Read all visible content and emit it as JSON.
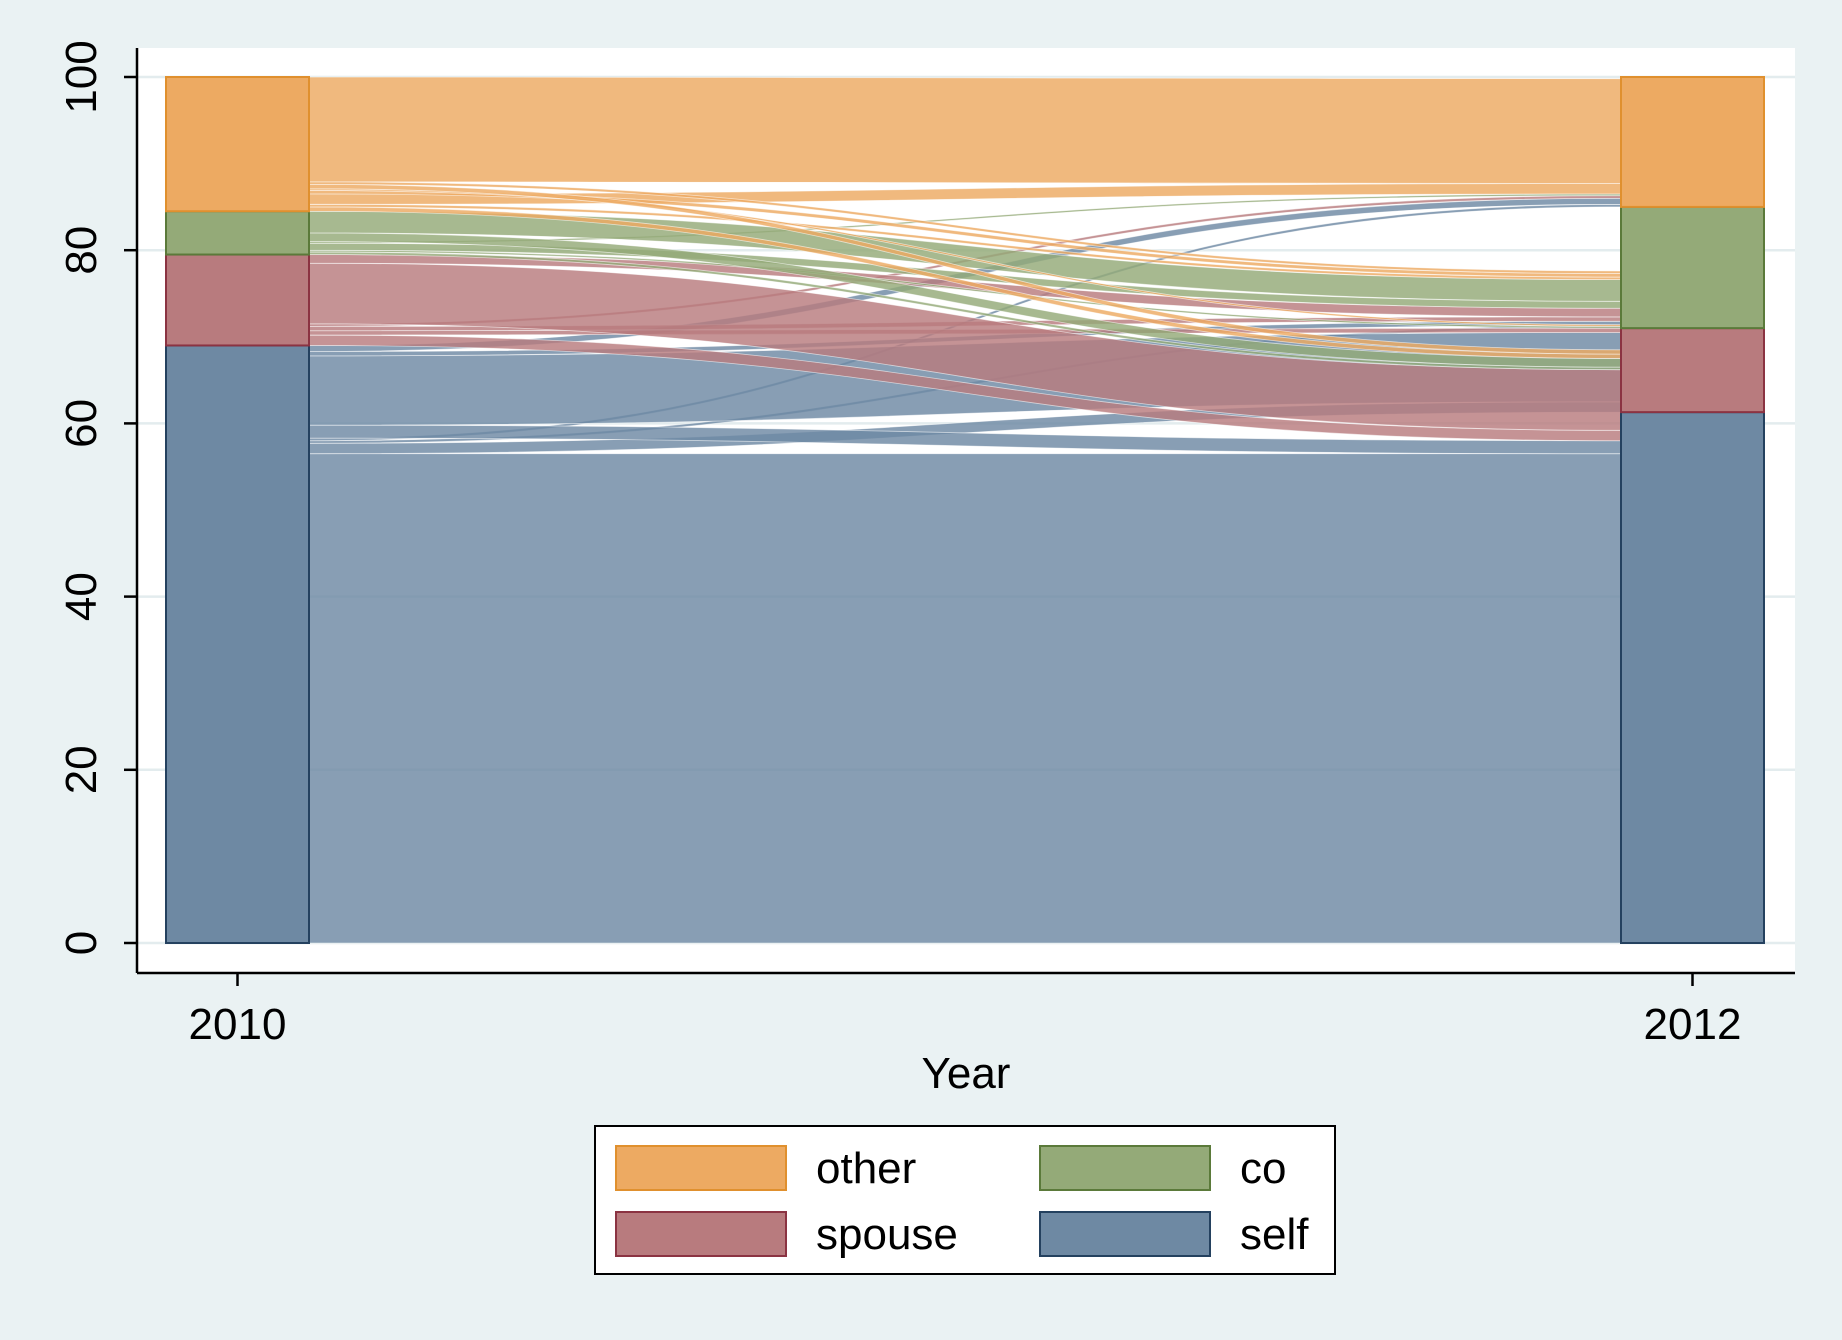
{
  "chart_data": {
    "type": "alluvial",
    "title": "",
    "xlabel": "Year",
    "ylabel": "",
    "categories": [
      "2010",
      "2012"
    ],
    "ylim": [
      0,
      100
    ],
    "y_ticks": [
      0,
      20,
      40,
      60,
      80,
      100
    ],
    "grid": true,
    "legend_position": "bottom",
    "series": [
      {
        "name": "self",
        "values": [
          69.0,
          61.3
        ],
        "color": "#6e89a3",
        "edge": "#24415f"
      },
      {
        "name": "spouse",
        "values": [
          10.5,
          9.7
        ],
        "color": "#b87b7e",
        "edge": "#8b3342"
      },
      {
        "name": "co",
        "values": [
          5.0,
          14.0
        ],
        "color": "#94aa78",
        "edge": "#5b7a3a"
      },
      {
        "name": "other",
        "values": [
          15.5,
          15.0
        ],
        "color": "#edaa62",
        "edge": "#e0902e"
      }
    ],
    "legend_order": [
      "other",
      "co",
      "spouse",
      "self"
    ],
    "flows": [
      {
        "from": "self",
        "to": "self",
        "value": 56.5
      },
      {
        "from": "self",
        "to": "spouse",
        "value": 1.2
      },
      {
        "from": "self",
        "to": "co",
        "value": 0.3
      },
      {
        "from": "self",
        "to": "other",
        "value": 0.3
      },
      {
        "from": "self",
        "to": "self",
        "value": 1.5
      },
      {
        "from": "self",
        "to": "spouse",
        "value": 8.0
      },
      {
        "from": "self",
        "to": "co",
        "value": 0.5
      },
      {
        "from": "self",
        "to": "other",
        "value": 0.7
      },
      {
        "from": "spouse",
        "to": "self",
        "value": 1.2
      },
      {
        "from": "spouse",
        "to": "spouse",
        "value": 0.5
      },
      {
        "from": "spouse",
        "to": "co",
        "value": 0.5
      },
      {
        "from": "spouse",
        "to": "other",
        "value": 0.3
      },
      {
        "from": "spouse",
        "to": "self",
        "value": 7.0
      },
      {
        "from": "spouse",
        "to": "co",
        "value": 1.0
      },
      {
        "from": "co",
        "to": "self",
        "value": 0.3
      },
      {
        "from": "co",
        "to": "spouse",
        "value": 0.2
      },
      {
        "from": "co",
        "to": "co",
        "value": 0.8
      },
      {
        "from": "co",
        "to": "other",
        "value": 0.2
      },
      {
        "from": "co",
        "to": "self",
        "value": 1.0
      },
      {
        "from": "co",
        "to": "co",
        "value": 2.5
      },
      {
        "from": "other",
        "to": "self",
        "value": 0.5
      },
      {
        "from": "other",
        "to": "co",
        "value": 0.3
      },
      {
        "from": "other",
        "to": "other",
        "value": 1.2
      },
      {
        "from": "other",
        "to": "co",
        "value": 0.4
      },
      {
        "from": "other",
        "to": "spouse",
        "value": 0.2
      },
      {
        "from": "other",
        "to": "self",
        "value": 0.5
      },
      {
        "from": "other",
        "to": "co",
        "value": 0.3
      },
      {
        "from": "other",
        "to": "other",
        "value": 12.1
      }
    ]
  }
}
